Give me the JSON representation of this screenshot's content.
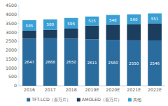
{
  "chart_data": {
    "type": "bar",
    "stacked": true,
    "grid": false,
    "legend": "bottom",
    "categories": [
      "2016",
      "2017",
      "2018",
      "2019E",
      "2020E",
      "2021E",
      "2022E"
    ],
    "series": [
      {
        "name": "TFT-LCD（百万片）",
        "color": "#2b6c9e",
        "data_labels": true,
        "values": [
          2647,
          2668,
          2650,
          2611,
          2580,
          2550,
          2546
        ]
      },
      {
        "name": "AMOLED（百万片）",
        "color": "#1b3d5e",
        "data_labels": false,
        "values": [
          450,
          480,
          560,
          760,
          850,
          900,
          960
        ]
      },
      {
        "name": "其他",
        "color": "#3aa0d4",
        "data_labels": true,
        "values": [
          585,
          580,
          596,
          515,
          548,
          560,
          551
        ]
      }
    ],
    "ylim": [
      0,
      4500
    ],
    "yticks": [
      0,
      500,
      1000,
      1500,
      2000,
      2500,
      3000,
      3500,
      4000,
      4500
    ]
  }
}
